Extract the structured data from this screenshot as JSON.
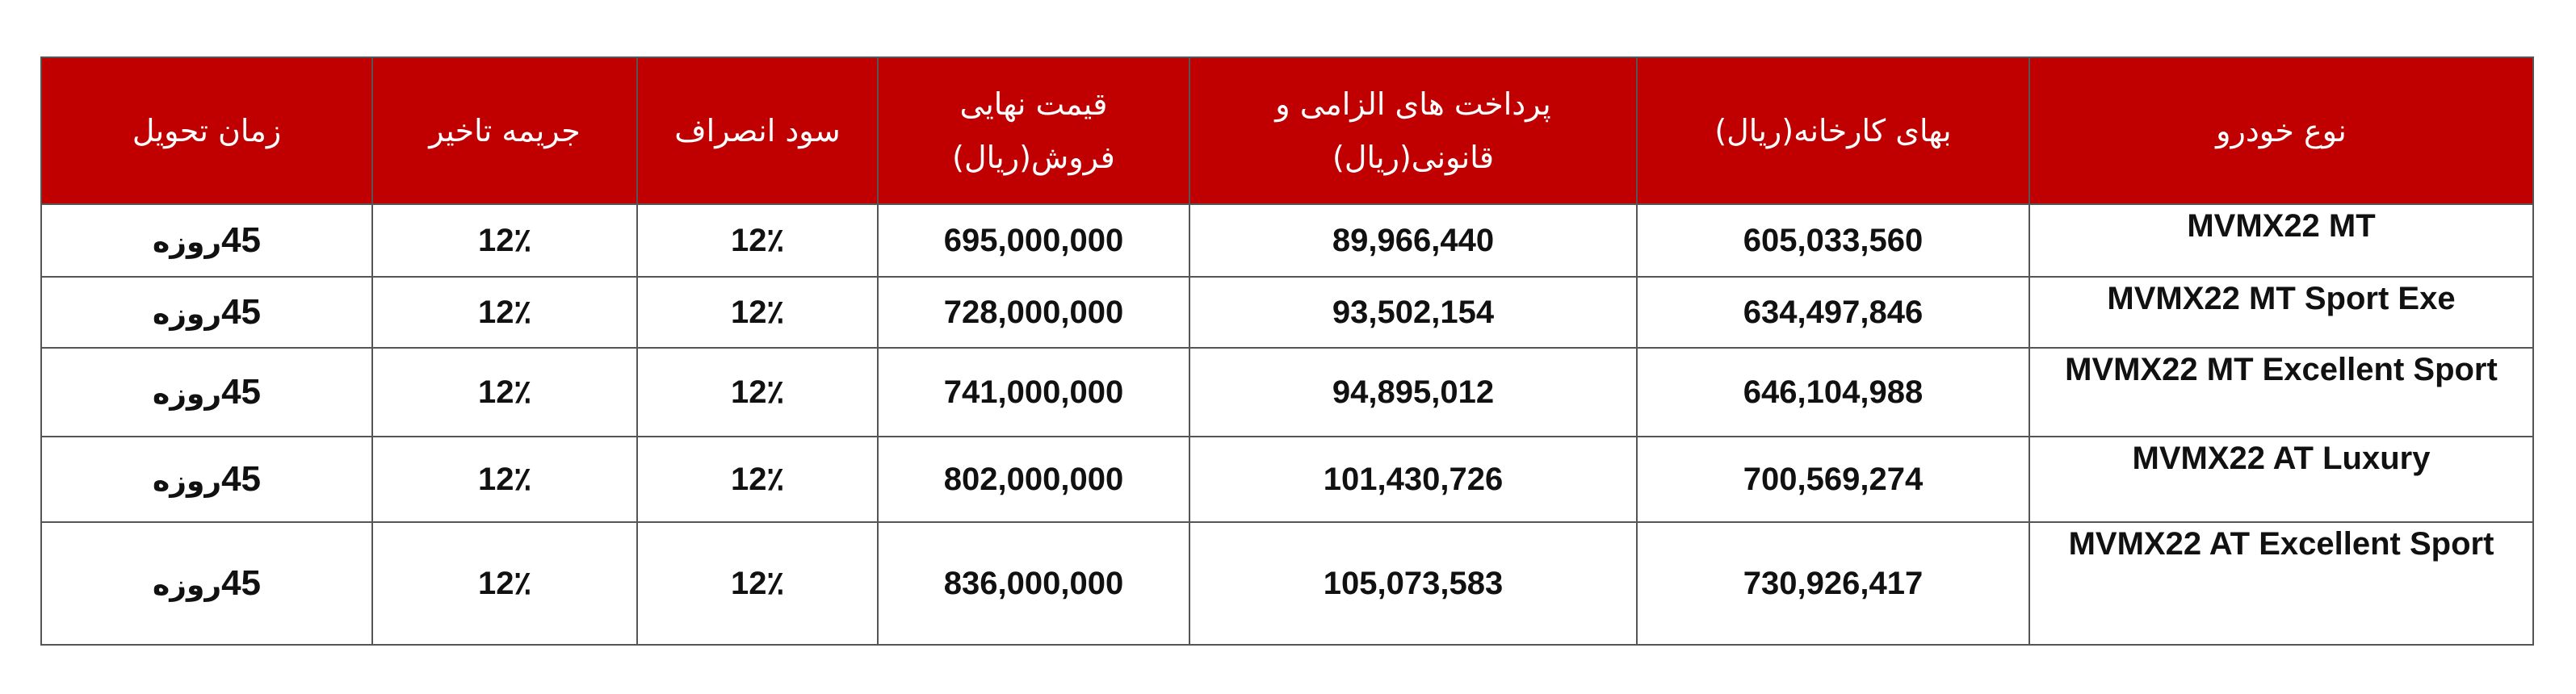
{
  "table": {
    "headers": {
      "car_type": "نوع خودرو",
      "factory_price": "بهای کارخانه(ریال)",
      "mandatory_payments_line1": "پرداخت های الزامی و",
      "mandatory_payments_line2": "قانونی(ریال)",
      "final_price_line1": "قیمت نهایی",
      "final_price_line2": "فروش(ریال)",
      "cancellation_profit": "سود انصراف",
      "delay_penalty": "جریمه تاخیر",
      "delivery_time": "زمان تحویل"
    },
    "rows": [
      {
        "model": "MVMX22 MT",
        "factory_price": "605,033,560",
        "mandatory_payments": "89,966,440",
        "final_price": "695,000,000",
        "cancellation_profit": "12٪",
        "delay_penalty": "12٪",
        "delivery_days": "45",
        "delivery_unit": "روزه"
      },
      {
        "model": "MVMX22 MT Sport Exe",
        "factory_price": "634,497,846",
        "mandatory_payments": "93,502,154",
        "final_price": "728,000,000",
        "cancellation_profit": "12٪",
        "delay_penalty": "12٪",
        "delivery_days": "45",
        "delivery_unit": "روزه"
      },
      {
        "model": "MVMX22 MT Excellent Sport",
        "factory_price": "646,104,988",
        "mandatory_payments": "94,895,012",
        "final_price": "741,000,000",
        "cancellation_profit": "12٪",
        "delay_penalty": "12٪",
        "delivery_days": "45",
        "delivery_unit": "روزه"
      },
      {
        "model": "MVMX22 AT Luxury",
        "factory_price": "700,569,274",
        "mandatory_payments": "101,430,726",
        "final_price": "802,000,000",
        "cancellation_profit": "12٪",
        "delay_penalty": "12٪",
        "delivery_days": "45",
        "delivery_unit": "روزه"
      },
      {
        "model": "MVMX22 AT Excellent Sport",
        "factory_price": "730,926,417",
        "mandatory_payments": "105,073,583",
        "final_price": "836,000,000",
        "cancellation_profit": "12٪",
        "delay_penalty": "12٪",
        "delivery_days": "45",
        "delivery_unit": "روزه"
      }
    ]
  },
  "colors": {
    "header_background": "#c00000",
    "header_text": "#ffffff",
    "border": "#555555",
    "body_text": "#111111"
  }
}
